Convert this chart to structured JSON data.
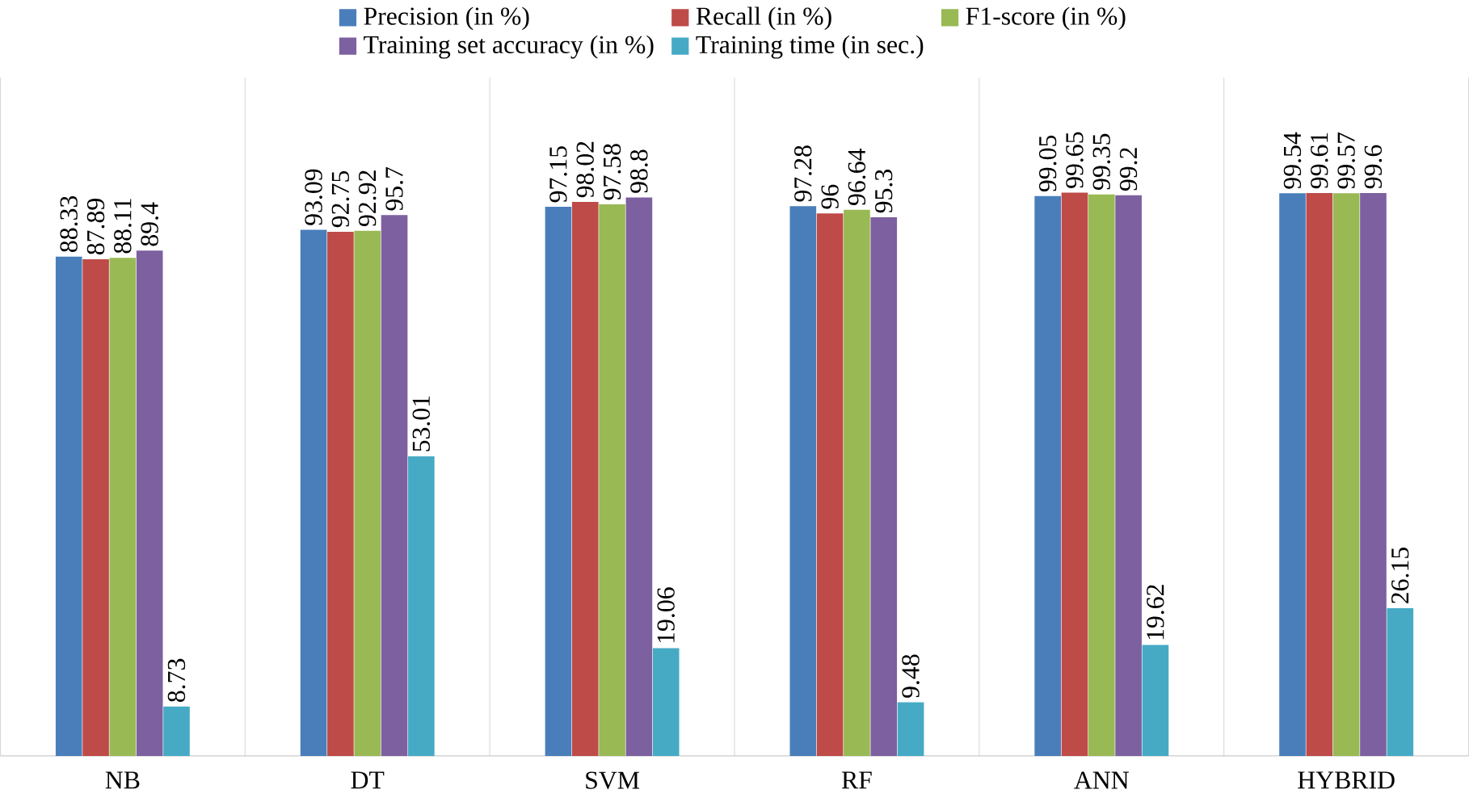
{
  "chart_data": {
    "type": "bar",
    "categories": [
      "NB",
      "DT",
      "SVM",
      "RF",
      "ANN",
      "HYBRID"
    ],
    "series": [
      {
        "name": "Precision (in %)",
        "color": "#4a7ebb",
        "values": [
          88.33,
          93.09,
          97.15,
          97.28,
          99.05,
          99.54
        ]
      },
      {
        "name": "Recall (in %)",
        "color": "#be4b48",
        "values": [
          87.89,
          92.75,
          98.02,
          96,
          99.65,
          99.61
        ]
      },
      {
        "name": "F1-score (in %)",
        "color": "#98b954",
        "values": [
          88.11,
          92.92,
          97.58,
          96.64,
          99.35,
          99.57
        ]
      },
      {
        "name": "Training set accuracy (in %)",
        "color": "#7d60a0",
        "values": [
          89.4,
          95.7,
          98.8,
          95.3,
          99.2,
          99.6
        ]
      },
      {
        "name": "Training time (in sec.)",
        "color": "#46aac5",
        "values": [
          8.73,
          53.01,
          19.06,
          9.48,
          19.62,
          26.15
        ]
      }
    ],
    "ylim": [
      0,
      120
    ],
    "tick_labels": "x",
    "data_labels": true,
    "grid": "x",
    "legend": "top"
  }
}
